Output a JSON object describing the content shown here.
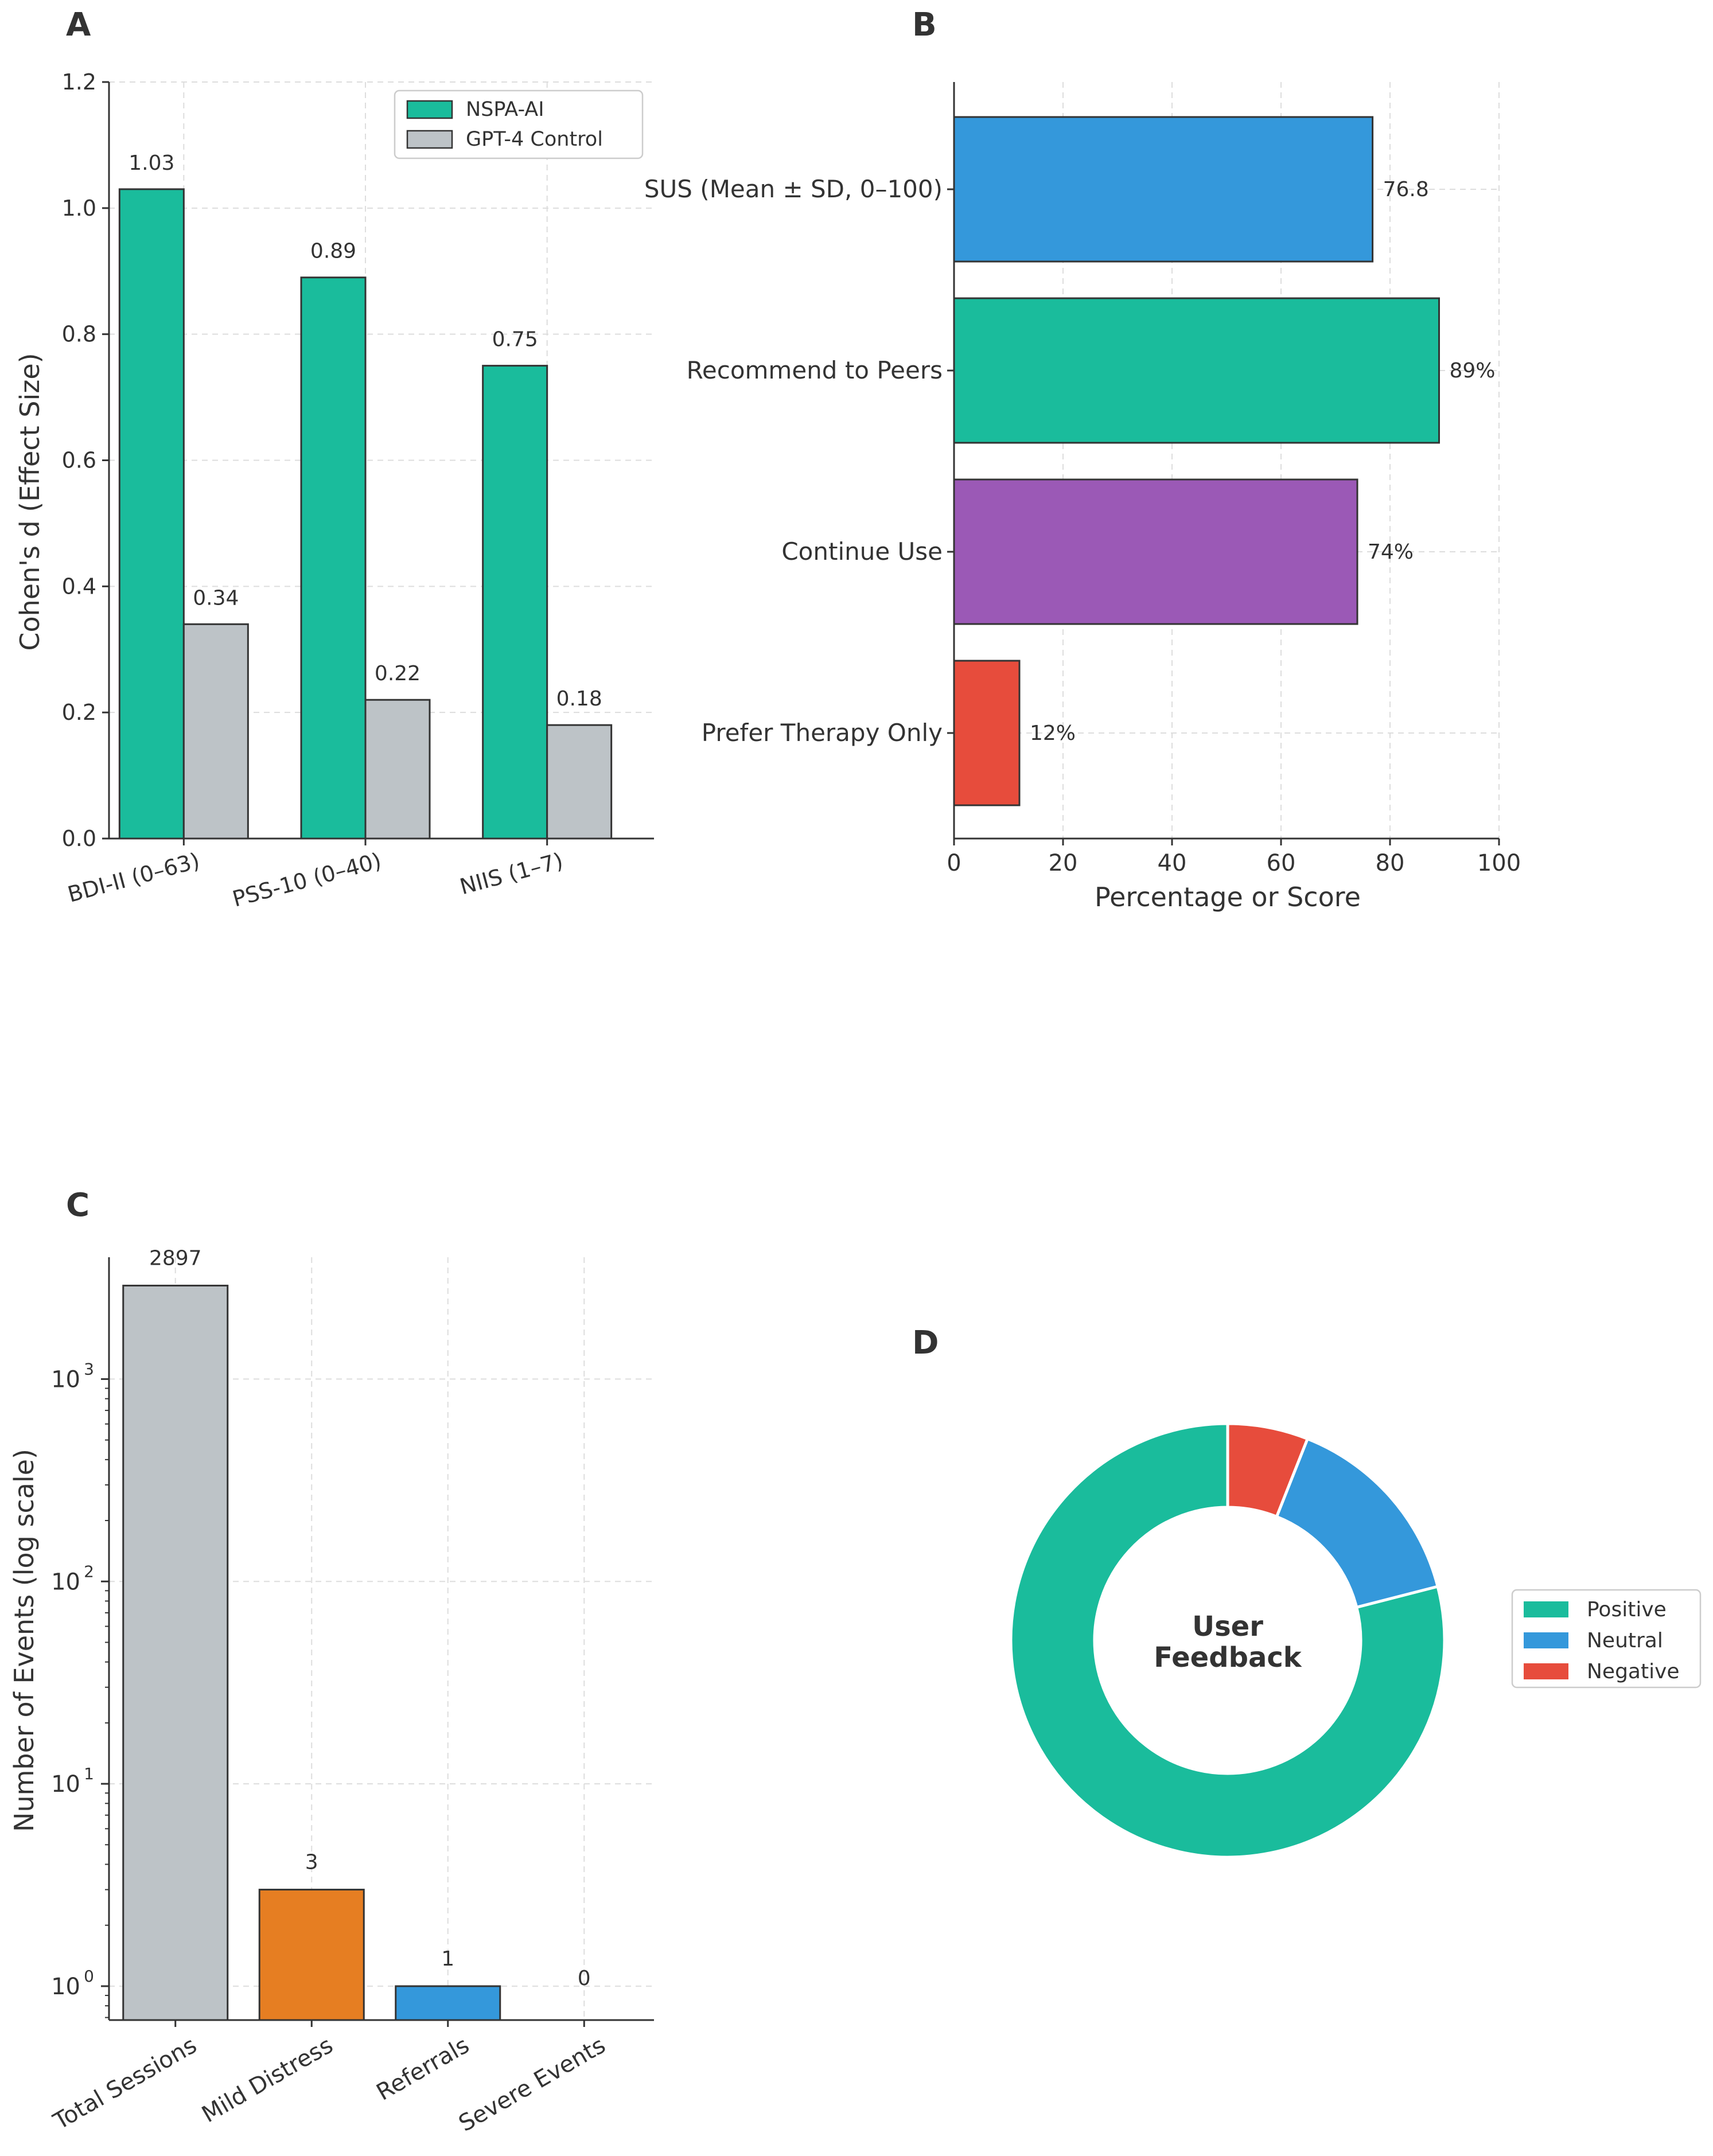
{
  "chart_data": [
    {
      "panel": "A",
      "type": "bar",
      "categories": [
        "BDI-II (0–63)",
        "PSS-10 (0–40)",
        "NIIS (1–7)"
      ],
      "series": [
        {
          "name": "NSPA-AI",
          "values": [
            1.03,
            0.89,
            0.75
          ],
          "color": "#1abc9c"
        },
        {
          "name": "GPT-4 Control",
          "values": [
            0.34,
            0.22,
            0.18
          ],
          "color": "#bdc3c7"
        }
      ],
      "value_labels": [
        [
          "1.03",
          "0.89",
          "0.75"
        ],
        [
          "0.34",
          "0.22",
          "0.18"
        ]
      ],
      "title": "",
      "xlabel": "",
      "ylabel": "Cohen's d (Effect Size)",
      "ylim": [
        0,
        1.2
      ],
      "yticks": [
        "0.0",
        "0.2",
        "0.4",
        "0.6",
        "0.8",
        "1.0",
        "1.2"
      ],
      "grid": true,
      "legend": "top-right"
    },
    {
      "panel": "B",
      "type": "bar",
      "orientation": "horizontal",
      "categories": [
        "SUS (Mean ± SD, 0–100)",
        "Recommend to Peers",
        "Continue Use",
        "Prefer Therapy Only"
      ],
      "values": [
        76.8,
        89,
        74,
        12
      ],
      "value_labels": [
        "76.8",
        "89%",
        "74%",
        "12%"
      ],
      "colors": [
        "#3498db",
        "#1abc9c",
        "#9b59b6",
        "#e74c3c"
      ],
      "xlabel": "Percentage or Score",
      "xlim": [
        0,
        100
      ],
      "xticks": [
        "0",
        "20",
        "40",
        "60",
        "80",
        "100"
      ],
      "grid": true
    },
    {
      "panel": "C",
      "type": "bar",
      "scale": "log",
      "categories": [
        "Total Sessions",
        "Mild Distress",
        "Referrals",
        "Severe Events"
      ],
      "values": [
        2897,
        3,
        1,
        0
      ],
      "value_labels": [
        "2897",
        "3",
        "1",
        "0"
      ],
      "colors": [
        "#bdc3c7",
        "#e67e22",
        "#3498db",
        "#95a5a6"
      ],
      "ylabel": "Number of Events (log scale)",
      "ylim": [
        0.68,
        4000
      ],
      "yticks": [
        {
          "base": "10",
          "exp": "0",
          "value": 1
        },
        {
          "base": "10",
          "exp": "1",
          "value": 10
        },
        {
          "base": "10",
          "exp": "2",
          "value": 100
        },
        {
          "base": "10",
          "exp": "3",
          "value": 1000
        }
      ],
      "grid": true
    },
    {
      "panel": "D",
      "type": "pie",
      "donut": true,
      "center_label_lines": [
        "User",
        "Feedback"
      ],
      "labels": [
        "Positive",
        "Neutral",
        "Negative"
      ],
      "values": [
        79,
        15,
        6
      ],
      "colors": [
        "#1abc9c",
        "#3498db",
        "#e74c3c"
      ],
      "legend": "right"
    }
  ],
  "panel_labels": {
    "a": "A",
    "b": "B",
    "c": "C",
    "d": "D"
  },
  "colors": {
    "axis": "#333333",
    "grid": "#dddddd",
    "edge": "#333333",
    "text": "#333333"
  }
}
